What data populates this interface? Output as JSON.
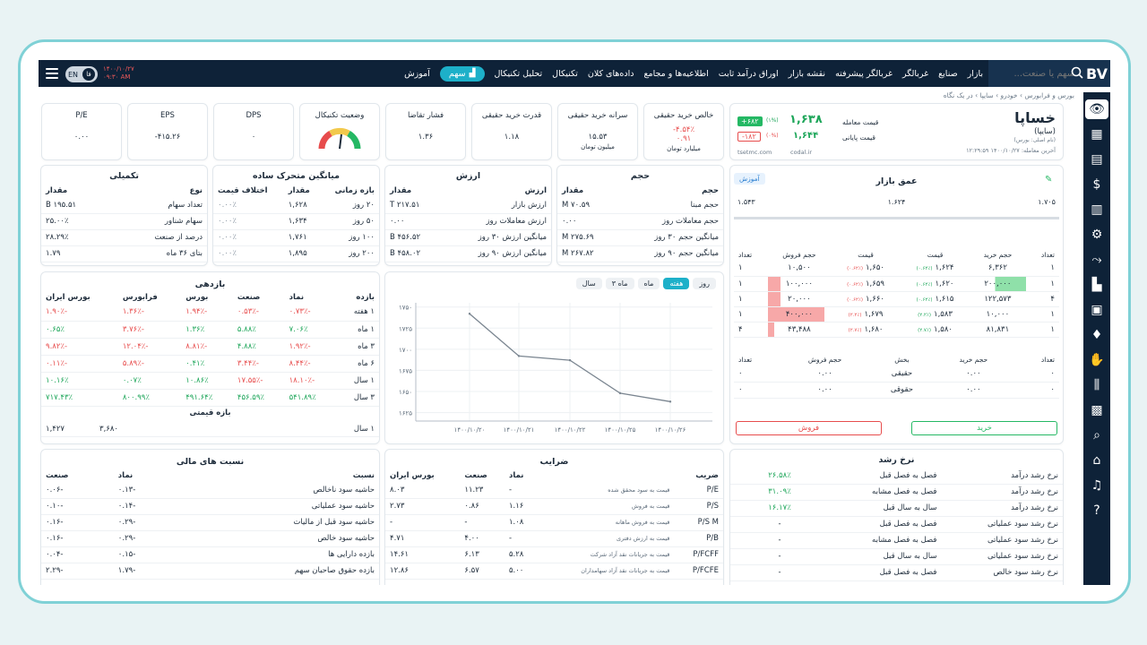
{
  "topnav": {
    "search_placeholder": "سهم یا صنعت...",
    "logo": "BV",
    "menu": [
      "بازار",
      "صنایع",
      "غربالگر",
      "غربالگر پیشرفته",
      "نقشه بازار",
      "اوراق درآمد ثابت",
      "اطلاعیه‌ها و مجامع",
      "داده‌های کلان",
      "تکنیکال",
      "تحلیل تکنیکال",
      "سهم",
      "آموزش"
    ],
    "lang_en": "EN",
    "lang_fa": "فا",
    "date": "۱۴۰۰/۱۰/۲۷",
    "time": "۰۹:۳۰ AM"
  },
  "breadcrumb": "بورس و فرابورس  ›  خودرو  ›  سایپا  ›  در یک نگاه",
  "stock": {
    "symbol": "خساپا",
    "name": "(سایپا)",
    "sub": "(نام اصلی: بورس)",
    "updated": "آخرین معامله: ۱۴۰۰/۱۰/۲۷ ۱۲:۲۹:۵۹",
    "last_label": "قیمت معامله",
    "last_value": "۱,۶۳۸",
    "last_change": "(۱%)",
    "last_delta": "+۶۸۲",
    "close_label": "قیمت پایانی",
    "close_value": "۱,۶۴۴",
    "close_change": "(۰%)",
    "close_delta": "-۱۸۲",
    "link1": "tsetmc.com",
    "link2": "codal.ir"
  },
  "stats": [
    {
      "title": "خالص خرید حقیقی",
      "v1": "-۴.۵۴٪",
      "v2": "۰.۹۱",
      "unit": "میلیارد تومان"
    },
    {
      "title": "سرانه خرید حقیقی",
      "v1": "۱۵.۵۳",
      "unit": "میلیون تومان"
    },
    {
      "title": "قدرت خرید حقیقی",
      "v1": "۱.۱۸"
    },
    {
      "title": "فشار تقاضا",
      "v1": "۱.۳۶"
    },
    {
      "title": "وضعیت تکنیکال"
    },
    {
      "title": "DPS",
      "v1": "۰"
    },
    {
      "title": "EPS",
      "v1": "-۴۱۵.۲۶"
    },
    {
      "title": "P/E",
      "v1": "۰.۰۰"
    }
  ],
  "depth": {
    "title": "عمق بازار",
    "edu": "آموزش",
    "range_low": "۱.۵۴۳",
    "range_mid": "۱.۶۲۴",
    "range_high": "۱.۷۰۵",
    "headers": [
      "تعداد",
      "حجم خرید",
      "قیمت",
      "قیمت",
      "حجم فروش",
      "تعداد"
    ],
    "rows": [
      [
        "۱",
        "۶,۳۶۲",
        "۱,۶۲۴",
        "۱,۶۵۰",
        "۱۰,۵۰۰",
        "۱"
      ],
      [
        "۱",
        "۲۰۰,۰۰۰",
        "۱,۶۲۰",
        "۱,۶۵۹",
        "۱۰۰,۰۰۰",
        "۱"
      ],
      [
        "۴",
        "۱۲۲,۵۷۳",
        "۱,۶۱۵",
        "۱,۶۶۰",
        "۲۰,۰۰۰",
        "۱"
      ],
      [
        "۱",
        "۱۰,۰۰۰",
        "۱,۵۸۳",
        "۱,۶۷۹",
        "۴۰۰,۰۰۰",
        "۱"
      ],
      [
        "۱",
        "۸۱,۸۳۱",
        "۱,۵۸۰",
        "۱,۶۸۰",
        "۴۳,۴۸۸",
        "۴"
      ]
    ],
    "bid_pct": [
      "(۰.۶۲٪)",
      "(۰.۶۲٪)",
      "(۰.۶۲٪)",
      "(۲.۲٪)",
      "(۲.۷٪)"
    ],
    "ask_pct": [
      "(۰.۶۲٪)",
      "(۰.۶۲٪)",
      "(۰.۶۲٪)",
      "(۲.۲٪)",
      "(۲.۷٪)"
    ],
    "sub_headers": [
      "تعداد",
      "حجم خرید",
      "بخش",
      "حجم فروش",
      "تعداد"
    ],
    "sub_rows": [
      [
        "۰",
        "۰.۰۰",
        "حقیقی",
        "۰.۰۰",
        "۰"
      ],
      [
        "۰",
        "۰.۰۰",
        "حقوقی",
        "۰.۰۰",
        "۰"
      ]
    ],
    "buy": "خرید",
    "sell": "فروش"
  },
  "volume": {
    "title": "حجم",
    "headers": [
      "حجم",
      "مقدار"
    ],
    "rows": [
      [
        "حجم مبنا",
        "۷۰.۵۹ M"
      ],
      [
        "حجم معاملات روز",
        "۰.۰۰"
      ],
      [
        "میانگین حجم ۳۰ روز",
        "۲۷۵.۶۹ M"
      ],
      [
        "میانگین حجم ۹۰ روز",
        "۲۶۷.۸۲ M"
      ]
    ]
  },
  "value": {
    "title": "ارزش",
    "headers": [
      "ارزش",
      "مقدار"
    ],
    "rows": [
      [
        "ارزش بازار",
        "۲۱۷.۵۱ T"
      ],
      [
        "ارزش معاملات روز",
        "۰.۰۰"
      ],
      [
        "میانگین ارزش ۳۰ روز",
        "۴۵۶.۵۲ B"
      ],
      [
        "میانگین ارزش ۹۰ روز",
        "۴۵۸.۰۲ B"
      ]
    ]
  },
  "ma": {
    "title": "میانگین متحرک ساده",
    "headers": [
      "بازه زمانی",
      "مقدار",
      "اختلاف قیمت"
    ],
    "rows": [
      [
        "۲۰ روز",
        "۱,۶۲۸",
        "۰.۰۰٪"
      ],
      [
        "۵۰ روز",
        "۱,۶۳۴",
        "۰.۰۰٪"
      ],
      [
        "۱۰۰ روز",
        "۱,۷۶۱",
        "۰.۰۰٪"
      ],
      [
        "۲۰۰ روز",
        "۱,۸۹۵",
        "۰.۰۰٪"
      ]
    ]
  },
  "extra": {
    "title": "تکمیلی",
    "headers": [
      "نوع",
      "مقدار"
    ],
    "rows": [
      [
        "تعداد سهام",
        "۱۹۵.۵۱ B"
      ],
      [
        "سهام شناور",
        "۲۵.۰۰٪"
      ],
      [
        "درصد از صنعت",
        "۲۸.۲۹٪"
      ],
      [
        "بتای ۳۶ ماه",
        "۱.۷۹"
      ]
    ]
  },
  "returns": {
    "title": "بازدهی",
    "headers": [
      "بازده",
      "نماد",
      "صنعت",
      "بورس",
      "فرابورس",
      "بورس ایران"
    ],
    "rows": [
      [
        "۱ هفته",
        "-۰.۷۳٪",
        "-۰.۵۳٪",
        "-۱.۹۴٪",
        "-۱.۳۶٪",
        "-۱.۹۰٪"
      ],
      [
        "۱ ماه",
        "۷.۰۶٪",
        "۵.۸۸٪",
        "۱.۳۶٪",
        "-۳.۷۶٪",
        "۰.۶۵٪"
      ],
      [
        "۳ ماه",
        "-۱.۹۲٪",
        "۴.۸۸٪",
        "-۸.۸۱٪",
        "-۱۲.۰۴٪",
        "-۹.۸۲٪"
      ],
      [
        "۶ ماه",
        "-۸.۴۴٪",
        "-۳.۴۴٪",
        "۰.۴۱٪",
        "-۵.۸۹٪",
        "-۰.۱۱٪"
      ],
      [
        "۱ سال",
        "-۱۸.۱۰٪",
        "-۱۷.۵۵٪",
        "۱۰.۸۶٪",
        "۰.۰۷٪",
        "۱۰.۱۶٪"
      ],
      [
        "۳ سال",
        "۵۴۱.۸۹٪",
        "۴۵۶.۵۹٪",
        "۴۹۱.۶۴٪",
        "۸۰۰.۹۹٪",
        "۷۱۷.۴۳٪"
      ]
    ],
    "range_title": "بازه قیمتی",
    "range_row": [
      "۱ سال",
      "۳,۶۸۰",
      "۱,۴۲۷"
    ]
  },
  "chart": {
    "tabs": [
      "روز",
      "هفته",
      "ماه",
      "۳ ماه",
      "سال"
    ],
    "active_tab": "هفته"
  },
  "chart_data": {
    "type": "line",
    "x": [
      "۱۴۰۰/۱۰/۲۰",
      "۱۴۰۰/۱۰/۲۱",
      "۱۴۰۰/۱۰/۲۲",
      "۱۴۰۰/۱۰/۲۵",
      "۱۴۰۰/۱۰/۲۶"
    ],
    "y": [
      1742,
      1692,
      1687,
      1648,
      1638
    ],
    "y_ticks": [
      "۱۷۵۰",
      "۱۷۲۵",
      "۱۷۰۰",
      "۱۶۷۵",
      "۱۶۵۰",
      "۱۶۲۵"
    ],
    "ylim": [
      1615,
      1755
    ],
    "grid": true,
    "color": "#7a8590"
  },
  "ratios": {
    "title": "نسبت های مالی",
    "headers": [
      "نسبت",
      "نماد",
      "صنعت"
    ],
    "rows": [
      [
        "حاشیه سود ناخالص",
        "-۰.۱۳",
        "-۰.۰۶"
      ],
      [
        "حاشیه سود عملیاتی",
        "-۰.۱۴",
        "-۰.۱۰"
      ],
      [
        "حاشیه سود قبل از مالیات",
        "-۰.۲۹",
        "-۰.۱۶"
      ],
      [
        "حاشیه سود خالص",
        "-۰.۲۹",
        "-۰.۱۶"
      ],
      [
        "بازده دارایی ها",
        "-۰.۱۵",
        "-۰.۰۴"
      ],
      [
        "بازده حقوق صاحبان سهم",
        "-۱.۷۹",
        "-۲.۲۹"
      ]
    ]
  },
  "multiples": {
    "title": "ضرایب",
    "headers": [
      "ضریب",
      "نماد",
      "صنعت",
      "بورس ایران"
    ],
    "rows": [
      [
        "P/E",
        "قیمت به سود محقق شده",
        "-",
        "۱۱.۲۳",
        "۸.۰۳"
      ],
      [
        "P/S",
        "قیمت به فروش",
        "۱.۱۶",
        "۰.۸۶",
        "۲.۷۳"
      ],
      [
        "P/S M",
        "قیمت به فروش ماهانه",
        "۱.۰۸",
        "-",
        "-"
      ],
      [
        "P/B",
        "قیمت به ارزش دفتری",
        "-",
        "۴.۰۰",
        "۴.۷۱"
      ],
      [
        "P/FCFF",
        "قیمت به جریانات نقد آزاد شرکت",
        "۵.۲۸",
        "۶.۱۳",
        "۱۴.۶۱"
      ],
      [
        "P/FCFE",
        "قیمت به جریانات نقد آزاد سهامداران",
        "۵.۰۰",
        "۶.۵۷",
        "۱۲.۸۶"
      ]
    ]
  },
  "growth": {
    "title": "نرخ رشد",
    "rows": [
      [
        "نرخ رشد درآمد",
        "فصل به فصل قبل",
        "۲۶.۵۸٪"
      ],
      [
        "نرخ رشد درآمد",
        "فصل به فصل مشابه",
        "۳۱.۰۹٪"
      ],
      [
        "نرخ رشد درآمد",
        "سال به سال قبل",
        "۱۶.۱۷٪"
      ],
      [
        "نرخ رشد سود عملیاتی",
        "فصل به فصل قبل",
        "-"
      ],
      [
        "نرخ رشد سود عملیاتی",
        "فصل به فصل مشابه",
        "-"
      ],
      [
        "نرخ رشد سود عملیاتی",
        "سال به سال قبل",
        "-"
      ],
      [
        "نرخ رشد سود خالص",
        "فصل به فصل قبل",
        "-"
      ]
    ]
  }
}
